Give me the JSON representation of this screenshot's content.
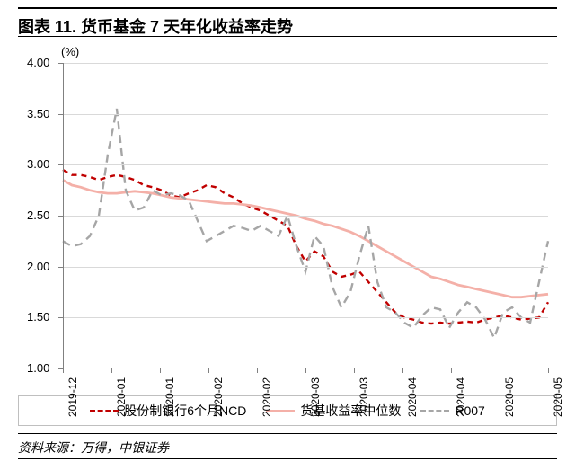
{
  "title": "图表 11. 货币基金 7 天年化收益率走势",
  "chart": {
    "type": "line",
    "y_unit": "(%)",
    "ylim": [
      1.0,
      4.0
    ],
    "ytick_step": 0.5,
    "yticks": [
      "1.00",
      "1.50",
      "2.00",
      "2.50",
      "3.00",
      "3.50",
      "4.00"
    ],
    "xticks": [
      "2019-12",
      "2020-01",
      "2020-01",
      "2020-02",
      "2020-02",
      "2020-03",
      "2020-03",
      "2020-04",
      "2020-04",
      "2020-05",
      "2020-05"
    ],
    "n_points": 55,
    "gridline_color": "#d9d9d9",
    "axis_color": "#808080",
    "background_color": "#ffffff",
    "series": [
      {
        "name": "股份制银行6个月NCD",
        "color": "#c00000",
        "dash": "6,5",
        "width": 2.4,
        "values": [
          2.95,
          2.9,
          2.9,
          2.88,
          2.85,
          2.88,
          2.9,
          2.88,
          2.85,
          2.8,
          2.78,
          2.75,
          2.7,
          2.68,
          2.72,
          2.75,
          2.8,
          2.78,
          2.72,
          2.68,
          2.62,
          2.58,
          2.55,
          2.5,
          2.45,
          2.4,
          2.2,
          2.05,
          2.15,
          2.1,
          1.95,
          1.9,
          1.92,
          1.95,
          1.85,
          1.75,
          1.65,
          1.55,
          1.5,
          1.48,
          1.45,
          1.44,
          1.45,
          1.44,
          1.45,
          1.46,
          1.45,
          1.48,
          1.5,
          1.52,
          1.5,
          1.48,
          1.49,
          1.5,
          1.65
        ]
      },
      {
        "name": "货基收益率中位数",
        "color": "#f4b0a8",
        "dash": "",
        "width": 2.8,
        "values": [
          2.85,
          2.8,
          2.78,
          2.75,
          2.73,
          2.72,
          2.72,
          2.73,
          2.74,
          2.73,
          2.72,
          2.7,
          2.68,
          2.67,
          2.66,
          2.65,
          2.64,
          2.63,
          2.62,
          2.62,
          2.61,
          2.6,
          2.58,
          2.56,
          2.54,
          2.52,
          2.5,
          2.47,
          2.45,
          2.42,
          2.4,
          2.37,
          2.34,
          2.3,
          2.25,
          2.2,
          2.15,
          2.1,
          2.05,
          2.0,
          1.95,
          1.9,
          1.88,
          1.85,
          1.82,
          1.8,
          1.78,
          1.76,
          1.74,
          1.72,
          1.7,
          1.7,
          1.71,
          1.72,
          1.73
        ]
      },
      {
        "name": "R007",
        "color": "#a6a6a6",
        "dash": "9,6",
        "width": 2.4,
        "values": [
          2.25,
          2.2,
          2.22,
          2.3,
          2.5,
          3.1,
          3.55,
          2.75,
          2.55,
          2.58,
          2.75,
          2.7,
          2.72,
          2.7,
          2.65,
          2.45,
          2.25,
          2.3,
          2.35,
          2.4,
          2.38,
          2.35,
          2.4,
          2.35,
          2.3,
          2.5,
          2.2,
          1.95,
          2.3,
          2.2,
          1.8,
          1.6,
          1.75,
          2.1,
          2.4,
          1.85,
          1.6,
          1.55,
          1.45,
          1.4,
          1.52,
          1.6,
          1.58,
          1.4,
          1.55,
          1.65,
          1.6,
          1.48,
          1.3,
          1.55,
          1.6,
          1.5,
          1.45,
          1.85,
          2.25
        ]
      }
    ]
  },
  "legend": {
    "items": [
      {
        "label": "股份制银行6个月NCD",
        "color": "#c00000",
        "dash": "dashed"
      },
      {
        "label": "货基收益率中位数",
        "color": "#f4b0a8",
        "dash": "solid"
      },
      {
        "label": "R007",
        "color": "#a6a6a6",
        "dash": "dashed"
      }
    ]
  },
  "source": "资料来源：万得，中银证券"
}
